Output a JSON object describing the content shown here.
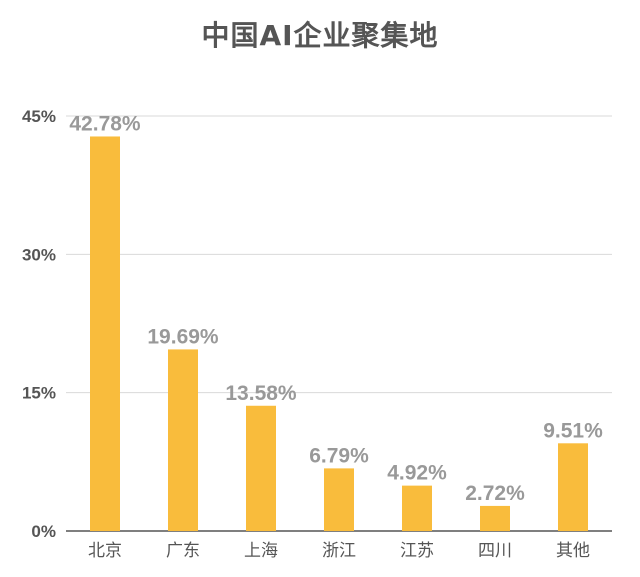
{
  "chart_data": {
    "type": "bar",
    "title": "中国AI企业聚集地",
    "xlabel": "",
    "ylabel": "",
    "categories": [
      "北京",
      "广东",
      "上海",
      "浙江",
      "江苏",
      "四川",
      "其他"
    ],
    "values": [
      42.78,
      19.69,
      13.58,
      6.79,
      4.92,
      2.72,
      9.51
    ],
    "value_labels": [
      "42.78%",
      "19.69%",
      "13.58%",
      "6.79%",
      "4.92%",
      "2.72%",
      "9.51%"
    ],
    "ylim": [
      0,
      45
    ],
    "yticks": [
      0,
      15,
      30,
      45
    ],
    "ytick_labels": [
      "0%",
      "15%",
      "30%",
      "45%"
    ],
    "grid": true,
    "legend": "none",
    "colors": {
      "bar": "#F9BC3C",
      "grid": "#d9d9d9",
      "axis": "#555555",
      "data_label": "#999999"
    }
  }
}
